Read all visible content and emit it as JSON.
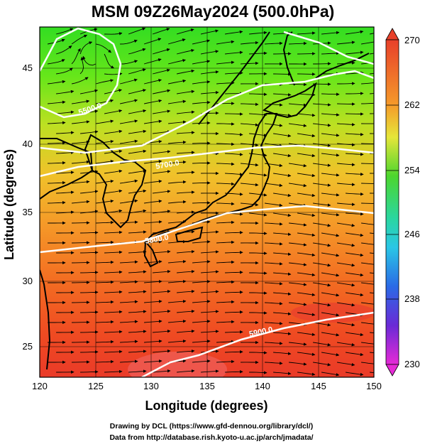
{
  "title": "MSM 09Z26May2024 (500.0hPa)",
  "axes": {
    "xlabel": "Longitude (degrees)",
    "ylabel": "Latitude  (degrees)",
    "xticks": [
      "120",
      "125",
      "130",
      "135",
      "140",
      "145",
      "150"
    ],
    "yticks": [
      "25",
      "30",
      "35",
      "40",
      "45"
    ],
    "lon_range": [
      120,
      150
    ],
    "lat_range": [
      22.4,
      47.6
    ]
  },
  "colorbar": {
    "ticks": [
      "270",
      "262",
      "254",
      "246",
      "238",
      "230"
    ],
    "range": [
      230,
      270
    ]
  },
  "contour_labels": [
    "5500.0",
    "5700.0",
    "5800.0",
    "5900.0"
  ],
  "credits": {
    "line1": "Drawing by DCL (https://www.gfd-dennou.org/library/dcl/)",
    "line2": "Data from http://database.rish.kyoto-u.ac.jp/arch/jmadata/"
  }
}
